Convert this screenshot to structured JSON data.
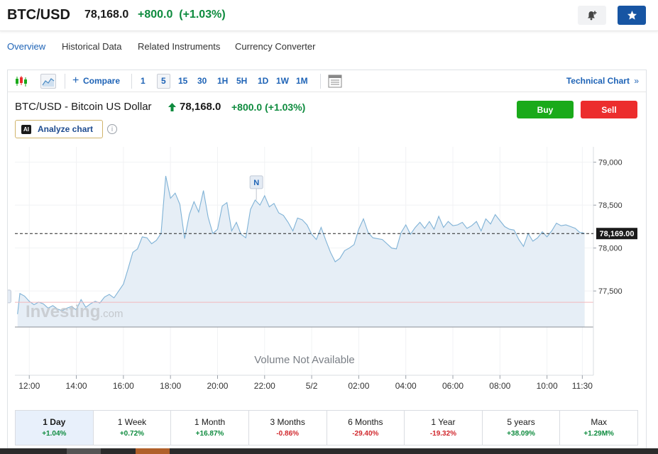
{
  "header": {
    "symbol": "BTC/USD",
    "price": "78,168.0",
    "change": "+800.0",
    "change_pct": "(+1.03%)",
    "alert_icon": "bell-plus-icon",
    "watchlist_icon": "star-icon"
  },
  "subnav": [
    "Overview",
    "Historical Data",
    "Related Instruments",
    "Currency Converter"
  ],
  "toolbar": {
    "compare_label": "Compare",
    "intervals": [
      "1",
      "5",
      "15",
      "30",
      "1H",
      "5H",
      "1D",
      "1W",
      "1M"
    ],
    "selected_interval": "5",
    "technical_label": "Technical Chart",
    "technical_arrow": "»"
  },
  "instrument": {
    "name": "BTC/USD - Bitcoin US Dollar",
    "price": "78,168.0",
    "change": "+800.0",
    "change_pct": "(+1.03%)",
    "buy_label": "Buy",
    "sell_label": "Sell",
    "analyze_label": "Analyze chart",
    "ai_badge": "AI",
    "info_glyph": "i"
  },
  "chart_data": {
    "type": "area",
    "current_price_label": "78,169.00",
    "current_price": 78169,
    "previous_close": 77368,
    "y_ticks": [
      "79,000",
      "78,500",
      "78,000",
      "77,500"
    ],
    "y_tick_values": [
      79000,
      78500,
      78000,
      77500
    ],
    "ylim": [
      77080,
      79080
    ],
    "x_ticks": [
      "12:00",
      "14:00",
      "16:00",
      "18:00",
      "20:00",
      "22:00",
      "5/2",
      "02:00",
      "04:00",
      "06:00",
      "08:00",
      "10:00",
      "11:30"
    ],
    "volume_label": "Volume Not Available",
    "watermark": "Investing",
    "watermark_suffix": ".com",
    "news_marker": "N",
    "news_marker_hours": [
      21.65,
      10.95
    ],
    "x_hours": [
      11.5,
      11.6,
      11.8,
      12.0,
      12.2,
      12.4,
      12.6,
      12.8,
      13.0,
      13.2,
      13.4,
      13.6,
      13.8,
      14.0,
      14.2,
      14.4,
      14.6,
      14.8,
      15.0,
      15.2,
      15.4,
      15.6,
      15.8,
      16.0,
      16.2,
      16.4,
      16.6,
      16.8,
      17.0,
      17.2,
      17.4,
      17.6,
      17.8,
      18.0,
      18.2,
      18.4,
      18.6,
      18.8,
      19.0,
      19.2,
      19.4,
      19.6,
      19.8,
      20.0,
      20.2,
      20.4,
      20.6,
      20.8,
      21.0,
      21.2,
      21.4,
      21.6,
      21.8,
      22.0,
      22.2,
      22.4,
      22.6,
      22.8,
      23.0,
      23.2,
      23.4,
      23.6,
      23.8,
      24.0,
      24.2,
      24.4,
      24.6,
      24.8,
      25.0,
      25.2,
      25.4,
      25.6,
      25.8,
      26.0,
      26.2,
      26.4,
      26.6,
      26.8,
      27.0,
      27.2,
      27.4,
      27.6,
      27.8,
      28.0,
      28.2,
      28.4,
      28.6,
      28.8,
      29.0,
      29.2,
      29.4,
      29.6,
      29.8,
      30.0,
      30.2,
      30.4,
      30.6,
      30.8,
      31.0,
      31.2,
      31.4,
      31.6,
      31.8,
      32.0,
      32.2,
      32.4,
      32.6,
      32.8,
      33.0,
      33.2,
      33.4,
      33.6,
      33.8,
      34.0,
      34.2,
      34.4,
      34.6,
      34.8,
      35.0,
      35.2,
      35.4,
      35.5,
      35.6
    ],
    "values": [
      77230,
      77470,
      77440,
      77380,
      77340,
      77370,
      77350,
      77300,
      77330,
      77290,
      77270,
      77300,
      77320,
      77280,
      77400,
      77310,
      77350,
      77380,
      77360,
      77430,
      77460,
      77420,
      77500,
      77580,
      77760,
      77950,
      77990,
      78130,
      78120,
      78050,
      78090,
      78170,
      78840,
      78580,
      78640,
      78510,
      78110,
      78390,
      78540,
      78420,
      78670,
      78360,
      78170,
      78220,
      78490,
      78530,
      78200,
      78300,
      78160,
      78120,
      78450,
      78560,
      78500,
      78610,
      78480,
      78520,
      78410,
      78380,
      78300,
      78200,
      78350,
      78330,
      78270,
      78160,
      78100,
      78240,
      78090,
      77950,
      77840,
      77880,
      77970,
      78000,
      78040,
      78220,
      78340,
      78180,
      78120,
      78110,
      78100,
      78050,
      78000,
      77990,
      78180,
      78270,
      78160,
      78240,
      78300,
      78230,
      78310,
      78220,
      78370,
      78240,
      78310,
      78260,
      78270,
      78300,
      78230,
      78260,
      78310,
      78200,
      78340,
      78280,
      78390,
      78320,
      78250,
      78220,
      78210,
      78100,
      78020,
      78170,
      78080,
      78120,
      78190,
      78130,
      78200,
      78290,
      78260,
      78270,
      78250,
      78230,
      78180,
      78180,
      78169
    ]
  },
  "ranges": [
    {
      "name": "1 Day",
      "pct": "+1.04%",
      "dir": "pos"
    },
    {
      "name": "1 Week",
      "pct": "+0.72%",
      "dir": "pos"
    },
    {
      "name": "1 Month",
      "pct": "+16.87%",
      "dir": "pos"
    },
    {
      "name": "3 Months",
      "pct": "-0.86%",
      "dir": "neg"
    },
    {
      "name": "6 Months",
      "pct": "-29.40%",
      "dir": "neg"
    },
    {
      "name": "1 Year",
      "pct": "-19.32%",
      "dir": "neg"
    },
    {
      "name": "5 years",
      "pct": "+38.09%",
      "dir": "pos"
    },
    {
      "name": "Max",
      "pct": "+1.29M%",
      "dir": "pos"
    }
  ],
  "colors": {
    "accent": "#1e63b6",
    "positive": "#0e8b3e",
    "negative": "#d1282d",
    "line": "#7fb2d6",
    "area": "#e6eef6",
    "buy": "#1aaa1a",
    "sell": "#ec2d2d",
    "prev_close_line": "#f2b8bc"
  }
}
